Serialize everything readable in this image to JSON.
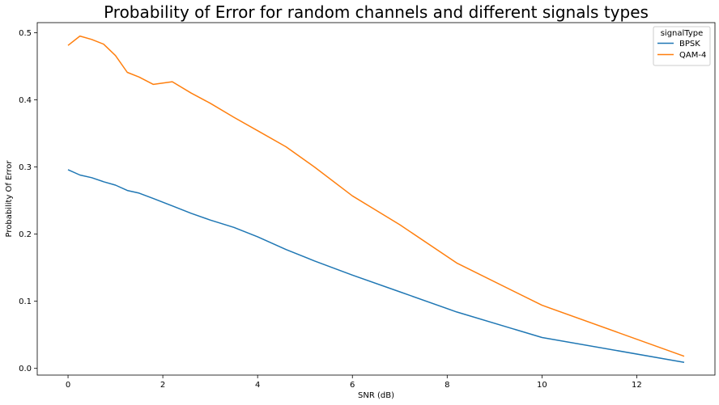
{
  "chart_data": {
    "type": "line",
    "title": "Probability of Error for random channels and different signals types",
    "xlabel": "SNR (dB)",
    "ylabel": "Probability Of Error",
    "xlim": [
      -0.65,
      13.65
    ],
    "ylim": [
      -0.01,
      0.515
    ],
    "xticks": [
      0,
      2,
      4,
      6,
      8,
      10,
      12
    ],
    "yticks": [
      0.0,
      0.1,
      0.2,
      0.3,
      0.4,
      0.5
    ],
    "xtick_labels": [
      "0",
      "2",
      "4",
      "6",
      "8",
      "10",
      "12"
    ],
    "ytick_labels": [
      "0.0",
      "0.1",
      "0.2",
      "0.3",
      "0.4",
      "0.5"
    ],
    "grid": false,
    "legend": {
      "title": "signalType",
      "placement": "top-right"
    },
    "series": [
      {
        "name": "BPSK",
        "color": "#1f77b4",
        "x": [
          0,
          0.25,
          0.5,
          0.75,
          1.0,
          1.25,
          1.5,
          1.8,
          2.2,
          2.6,
          3.0,
          3.5,
          4.0,
          4.6,
          5.2,
          6.0,
          7.0,
          8.2,
          10.0,
          13.0
        ],
        "y": [
          0.296,
          0.288,
          0.284,
          0.278,
          0.273,
          0.265,
          0.261,
          0.253,
          0.242,
          0.231,
          0.221,
          0.21,
          0.196,
          0.177,
          0.16,
          0.139,
          0.114,
          0.084,
          0.046,
          0.009
        ]
      },
      {
        "name": "QAM-4",
        "color": "#ff7f0e",
        "x": [
          0,
          0.25,
          0.5,
          0.75,
          1.0,
          1.25,
          1.5,
          1.8,
          2.2,
          2.6,
          3.0,
          3.5,
          4.0,
          4.6,
          5.2,
          6.0,
          7.0,
          8.2,
          10.0,
          13.0
        ],
        "y": [
          0.481,
          0.495,
          0.49,
          0.483,
          0.466,
          0.441,
          0.434,
          0.423,
          0.427,
          0.41,
          0.395,
          0.374,
          0.354,
          0.33,
          0.3,
          0.257,
          0.214,
          0.157,
          0.094,
          0.018
        ]
      }
    ]
  }
}
